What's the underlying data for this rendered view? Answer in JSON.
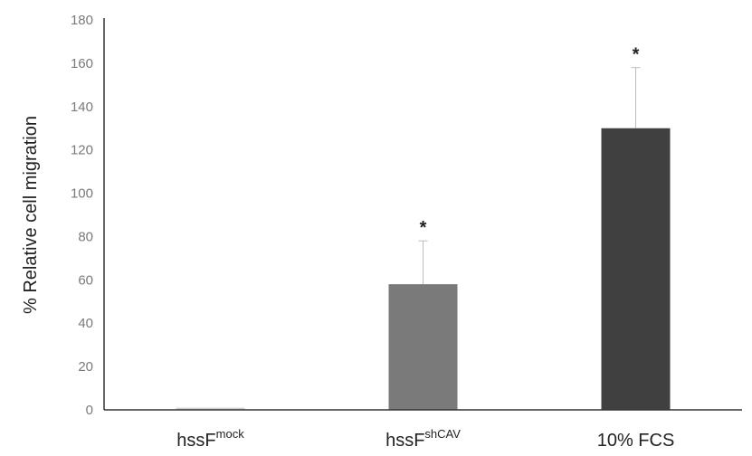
{
  "chart_data": {
    "type": "bar",
    "title": "",
    "xlabel": "",
    "ylabel": "% Relative cell migration",
    "ylim": [
      0,
      180
    ],
    "yticks": [
      0,
      20,
      40,
      60,
      80,
      100,
      120,
      140,
      160,
      180
    ],
    "grid": false,
    "categories": [
      {
        "base": "hssF",
        "sup": "mock"
      },
      {
        "base": "hssF",
        "sup": "shCAV"
      },
      {
        "base": "10% FCS",
        "sup": ""
      }
    ],
    "values": [
      1,
      58,
      130
    ],
    "errors": [
      0,
      20,
      28
    ],
    "significance": [
      "",
      "*",
      "*"
    ],
    "colors": [
      "#d0d0d0",
      "#7a7a7a",
      "#404040"
    ]
  }
}
